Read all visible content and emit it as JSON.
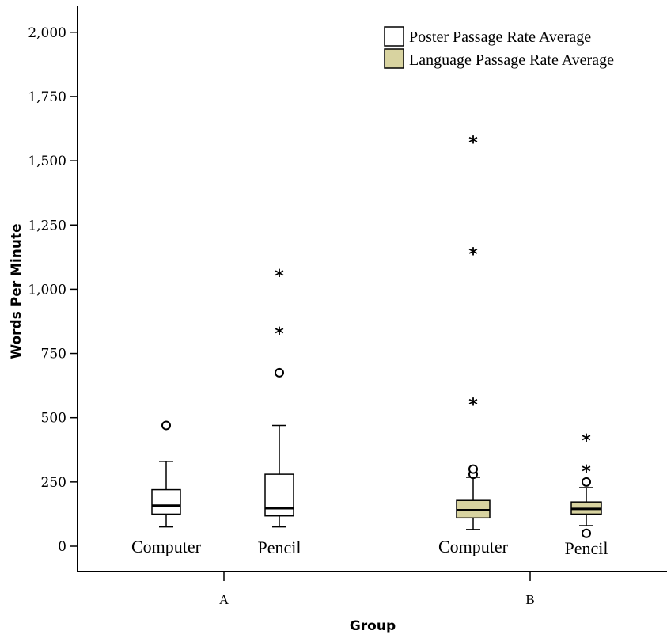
{
  "chart_data": {
    "type": "boxplot",
    "ylabel": "Words Per Minute",
    "xlabel": "Group",
    "ylim": [
      0,
      2000
    ],
    "yticks": [
      0,
      250,
      500,
      750,
      1000,
      1250,
      1500,
      1750,
      2000
    ],
    "ytick_labels": [
      "0",
      "250",
      "500",
      "750",
      "1,000",
      "1,250",
      "1,500",
      "1,750",
      "2,000"
    ],
    "groups": [
      "A",
      "B"
    ],
    "legend": {
      "placement": "top-right",
      "entries": [
        {
          "label": "Poster Passage Rate Average",
          "color": "#ffffff"
        },
        {
          "label": "Language Passage Rate Average",
          "color": "#d8d3a0"
        }
      ]
    },
    "boxes": [
      {
        "group": "A",
        "label": "Computer",
        "series": "Poster Passage Rate Average",
        "whisker_low": 75,
        "q1": 125,
        "median": 158,
        "q3": 220,
        "whisker_high": 330,
        "outliers": [
          470
        ],
        "extremes": []
      },
      {
        "group": "A",
        "label": "Pencil",
        "series": "Poster Passage Rate Average",
        "whisker_low": 75,
        "q1": 118,
        "median": 148,
        "q3": 280,
        "whisker_high": 470,
        "outliers": [
          675
        ],
        "extremes": [
          850,
          1075
        ]
      },
      {
        "group": "B",
        "label": "Computer",
        "series": "Language Passage Rate Average",
        "whisker_low": 65,
        "q1": 110,
        "median": 140,
        "q3": 178,
        "whisker_high": 268,
        "outliers": [
          280,
          300
        ],
        "extremes": [
          575,
          1160,
          1595
        ]
      },
      {
        "group": "B",
        "label": "Pencil",
        "series": "Language Passage Rate Average",
        "whisker_low": 80,
        "q1": 125,
        "median": 145,
        "q3": 172,
        "whisker_high": 228,
        "outliers": [
          50,
          250
        ],
        "extremes": [
          315,
          435
        ]
      }
    ]
  }
}
